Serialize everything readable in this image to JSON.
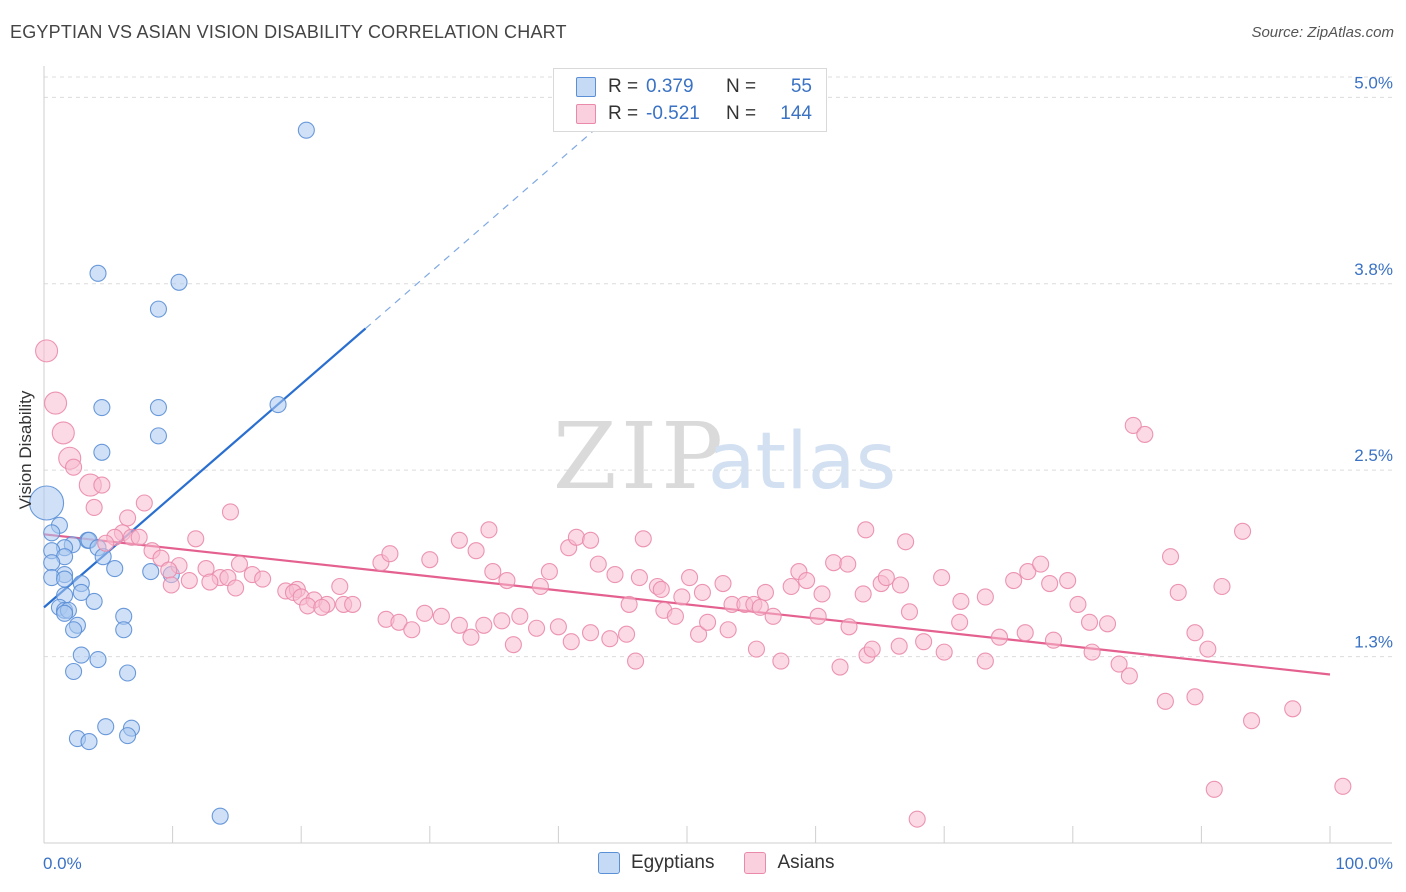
{
  "title": "EGYPTIAN VS ASIAN VISION DISABILITY CORRELATION CHART",
  "source": "Source: ZipAtlas.com",
  "watermark": {
    "zip": "ZIP",
    "atlas": "atlas"
  },
  "colors": {
    "egyptians_fill": "#aac8f0",
    "egyptians_stroke": "#5b8fd6",
    "egyptians_line": "#2a6fd0",
    "asians_fill": "#f7bcd0",
    "asians_stroke": "#ea8aab",
    "asians_line": "#e4608f",
    "tick_label": "#3a72c4",
    "grid": "#dcdcdc"
  },
  "legend_top": {
    "rows": [
      {
        "r_label": "R =",
        "r_value": "0.379",
        "n_label": "N =",
        "n_value": "55"
      },
      {
        "r_label": "R =",
        "r_value": "-0.521",
        "n_label": "N =",
        "n_value": "144"
      }
    ]
  },
  "legend_bottom": {
    "egyptians": "Egyptians",
    "asians": "Asians"
  },
  "chart_data": {
    "type": "scatter",
    "title": "EGYPTIAN VS ASIAN VISION DISABILITY CORRELATION CHART",
    "xlabel": "",
    "ylabel": "Vision Disability",
    "xlim": [
      0,
      100
    ],
    "ylim": [
      0.0,
      5.15
    ],
    "x_tick_labels": [
      "0.0%",
      "100.0%"
    ],
    "y_ticks": [
      1.25,
      2.5,
      3.75,
      5.0
    ],
    "y_tick_labels": [
      "1.3%",
      "2.5%",
      "3.8%",
      "5.0%"
    ],
    "series": [
      {
        "name": "Egyptians",
        "r": 0.379,
        "n": 55,
        "trend": {
          "x0": 0,
          "y0": 1.58,
          "x1": 25,
          "y1": 3.45,
          "dash_to_x": 46
        },
        "points": [
          [
            20.4,
            4.78
          ],
          [
            4.2,
            3.82
          ],
          [
            10.5,
            3.76
          ],
          [
            8.9,
            3.58
          ],
          [
            18.2,
            2.94
          ],
          [
            4.5,
            2.92
          ],
          [
            8.9,
            2.92
          ],
          [
            8.9,
            2.73
          ],
          [
            4.5,
            2.62
          ],
          [
            0.2,
            2.28,
            "l"
          ],
          [
            1.2,
            2.13
          ],
          [
            0.6,
            2.08
          ],
          [
            3.4,
            2.03
          ],
          [
            2.2,
            2.0
          ],
          [
            3.5,
            2.03
          ],
          [
            4.2,
            1.98
          ],
          [
            1.6,
            1.98
          ],
          [
            0.6,
            1.96
          ],
          [
            1.6,
            1.92
          ],
          [
            4.6,
            1.92
          ],
          [
            0.6,
            1.88
          ],
          [
            5.5,
            1.84
          ],
          [
            8.3,
            1.82
          ],
          [
            9.9,
            1.8
          ],
          [
            1.6,
            1.8
          ],
          [
            0.6,
            1.78
          ],
          [
            1.6,
            1.77
          ],
          [
            2.9,
            1.74
          ],
          [
            2.9,
            1.68
          ],
          [
            1.6,
            1.66
          ],
          [
            3.9,
            1.62
          ],
          [
            1.2,
            1.58
          ],
          [
            1.6,
            1.56
          ],
          [
            1.9,
            1.56
          ],
          [
            1.6,
            1.54
          ],
          [
            6.2,
            1.52
          ],
          [
            2.6,
            1.46
          ],
          [
            2.3,
            1.43
          ],
          [
            6.2,
            1.43
          ],
          [
            2.9,
            1.26
          ],
          [
            4.2,
            1.23
          ],
          [
            2.3,
            1.15
          ],
          [
            6.5,
            1.14
          ],
          [
            4.8,
            0.78
          ],
          [
            6.8,
            0.77
          ],
          [
            2.6,
            0.7
          ],
          [
            3.5,
            0.68
          ],
          [
            6.5,
            0.72
          ],
          [
            13.7,
            0.18
          ]
        ]
      },
      {
        "name": "Asians",
        "r": -0.521,
        "n": 144,
        "trend": {
          "x0": 0,
          "y0": 2.07,
          "x1": 100,
          "y1": 1.13
        },
        "points": [
          [
            0.2,
            3.3,
            "m"
          ],
          [
            0.9,
            2.95,
            "m"
          ],
          [
            1.5,
            2.75,
            "m"
          ],
          [
            2.0,
            2.58,
            "m"
          ],
          [
            2.3,
            2.52
          ],
          [
            3.6,
            2.4,
            "m"
          ],
          [
            4.5,
            2.4
          ],
          [
            3.9,
            2.25
          ],
          [
            7.8,
            2.28
          ],
          [
            14.5,
            2.22
          ],
          [
            6.5,
            2.18
          ],
          [
            6.1,
            2.08
          ],
          [
            5.5,
            2.05
          ],
          [
            6.8,
            2.05
          ],
          [
            7.4,
            2.05
          ],
          [
            4.8,
            2.01
          ],
          [
            11.8,
            2.04
          ],
          [
            8.4,
            1.96
          ],
          [
            9.1,
            1.91
          ],
          [
            10.5,
            1.86
          ],
          [
            15.2,
            1.87
          ],
          [
            9.7,
            1.83
          ],
          [
            12.6,
            1.84
          ],
          [
            16.2,
            1.8
          ],
          [
            13.7,
            1.78
          ],
          [
            14.3,
            1.78
          ],
          [
            11.3,
            1.76
          ],
          [
            12.9,
            1.75
          ],
          [
            17.0,
            1.77
          ],
          [
            9.9,
            1.73
          ],
          [
            14.9,
            1.71
          ],
          [
            18.8,
            1.69
          ],
          [
            19.7,
            1.7
          ],
          [
            19.4,
            1.68
          ],
          [
            20.0,
            1.65
          ],
          [
            21.0,
            1.63
          ],
          [
            22.0,
            1.6
          ],
          [
            20.5,
            1.59
          ],
          [
            21.6,
            1.58
          ],
          [
            23.3,
            1.6
          ],
          [
            24.0,
            1.6
          ],
          [
            23.0,
            1.72
          ],
          [
            26.2,
            1.88
          ],
          [
            26.9,
            1.94
          ],
          [
            30.0,
            1.9
          ],
          [
            32.3,
            2.03
          ],
          [
            33.6,
            1.96
          ],
          [
            34.6,
            2.1
          ],
          [
            34.9,
            1.82
          ],
          [
            36.0,
            1.76
          ],
          [
            38.6,
            1.72
          ],
          [
            39.3,
            1.82
          ],
          [
            40.8,
            1.98
          ],
          [
            41.4,
            2.05
          ],
          [
            42.5,
            2.03
          ],
          [
            43.1,
            1.87
          ],
          [
            44.4,
            1.8
          ],
          [
            45.5,
            1.6
          ],
          [
            46.6,
            2.04
          ],
          [
            46.3,
            1.78
          ],
          [
            47.7,
            1.72
          ],
          [
            48.0,
            1.7
          ],
          [
            49.6,
            1.65
          ],
          [
            50.2,
            1.78
          ],
          [
            51.2,
            1.68
          ],
          [
            52.8,
            1.74
          ],
          [
            53.5,
            1.6
          ],
          [
            54.5,
            1.6
          ],
          [
            55.2,
            1.6
          ],
          [
            56.1,
            1.68
          ],
          [
            58.1,
            1.72
          ],
          [
            58.7,
            1.82
          ],
          [
            59.3,
            1.76
          ],
          [
            60.5,
            1.67
          ],
          [
            61.4,
            1.88
          ],
          [
            62.5,
            1.87
          ],
          [
            63.7,
            1.67
          ],
          [
            63.9,
            2.1
          ],
          [
            65.1,
            1.74
          ],
          [
            65.5,
            1.78
          ],
          [
            66.6,
            1.73
          ],
          [
            67.0,
            2.02
          ],
          [
            69.8,
            1.78
          ],
          [
            71.3,
            1.62
          ],
          [
            73.2,
            1.65
          ],
          [
            75.4,
            1.76
          ],
          [
            76.5,
            1.82
          ],
          [
            77.5,
            1.87
          ],
          [
            78.2,
            1.74
          ],
          [
            79.6,
            1.76
          ],
          [
            80.4,
            1.6
          ],
          [
            81.3,
            1.48
          ],
          [
            82.7,
            1.47
          ],
          [
            84.7,
            2.8
          ],
          [
            85.6,
            2.74
          ],
          [
            87.6,
            1.92
          ],
          [
            88.2,
            1.68
          ],
          [
            89.5,
            1.41
          ],
          [
            90.5,
            1.3
          ],
          [
            91.6,
            1.72
          ],
          [
            93.2,
            2.09
          ],
          [
            26.6,
            1.5
          ],
          [
            27.6,
            1.48
          ],
          [
            28.6,
            1.43
          ],
          [
            29.6,
            1.54
          ],
          [
            30.9,
            1.52
          ],
          [
            32.3,
            1.46
          ],
          [
            33.2,
            1.38
          ],
          [
            34.2,
            1.46
          ],
          [
            35.6,
            1.49
          ],
          [
            36.5,
            1.33
          ],
          [
            37.0,
            1.52
          ],
          [
            38.3,
            1.44
          ],
          [
            40.0,
            1.45
          ],
          [
            41.0,
            1.35
          ],
          [
            42.5,
            1.41
          ],
          [
            44.0,
            1.37
          ],
          [
            45.3,
            1.4
          ],
          [
            46.0,
            1.22
          ],
          [
            48.2,
            1.56
          ],
          [
            49.1,
            1.52
          ],
          [
            50.9,
            1.4
          ],
          [
            51.6,
            1.48
          ],
          [
            53.2,
            1.43
          ],
          [
            55.7,
            1.58
          ],
          [
            56.7,
            1.52
          ],
          [
            60.2,
            1.52
          ],
          [
            62.6,
            1.45
          ],
          [
            67.3,
            1.55
          ],
          [
            71.2,
            1.48
          ],
          [
            74.3,
            1.38
          ],
          [
            76.3,
            1.41
          ],
          [
            78.5,
            1.36
          ],
          [
            81.5,
            1.28
          ],
          [
            83.6,
            1.2
          ],
          [
            84.4,
            1.12
          ],
          [
            87.2,
            0.95
          ],
          [
            89.5,
            0.98
          ],
          [
            93.9,
            0.82
          ],
          [
            97.1,
            0.9
          ],
          [
            55.4,
            1.3
          ],
          [
            57.3,
            1.22
          ],
          [
            61.9,
            1.18
          ],
          [
            64.0,
            1.26
          ],
          [
            64.4,
            1.3
          ],
          [
            66.5,
            1.32
          ],
          [
            68.4,
            1.35
          ],
          [
            70.0,
            1.28
          ],
          [
            73.2,
            1.22
          ],
          [
            91.0,
            0.36
          ],
          [
            101.0,
            0.38
          ],
          [
            67.9,
            0.16
          ]
        ]
      }
    ]
  }
}
